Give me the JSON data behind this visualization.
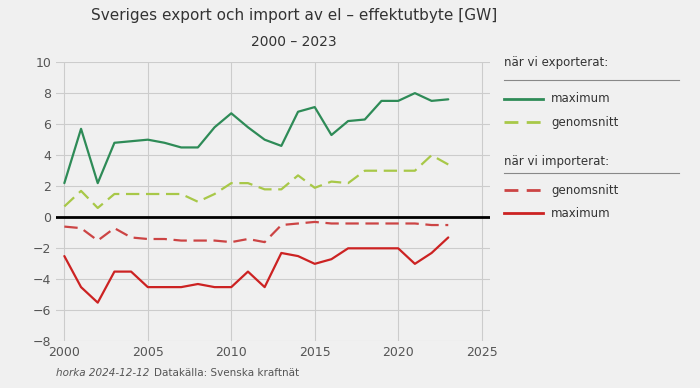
{
  "title_line1": "Sveriges export och import av el – effektutbyte [GW]",
  "title_line2": "2000 – 2023",
  "years": [
    2000,
    2001,
    2002,
    2003,
    2004,
    2005,
    2006,
    2007,
    2008,
    2009,
    2010,
    2011,
    2012,
    2013,
    2014,
    2015,
    2016,
    2017,
    2018,
    2019,
    2020,
    2021,
    2022,
    2023
  ],
  "export_max": [
    2.2,
    5.7,
    2.2,
    4.8,
    4.9,
    5.0,
    4.8,
    4.5,
    4.5,
    5.8,
    6.7,
    5.8,
    5.0,
    4.6,
    6.8,
    7.1,
    5.3,
    6.2,
    6.3,
    7.5,
    7.5,
    8.0,
    7.5,
    7.6
  ],
  "export_avg": [
    0.7,
    1.7,
    0.6,
    1.5,
    1.5,
    1.5,
    1.5,
    1.5,
    1.0,
    1.5,
    2.2,
    2.2,
    1.8,
    1.8,
    2.7,
    1.9,
    2.3,
    2.2,
    3.0,
    3.0,
    3.0,
    3.0,
    4.0,
    3.4
  ],
  "import_avg": [
    -0.6,
    -0.7,
    -1.5,
    -0.7,
    -1.3,
    -1.4,
    -1.4,
    -1.5,
    -1.5,
    -1.5,
    -1.6,
    -1.4,
    -1.6,
    -0.5,
    -0.4,
    -0.3,
    -0.4,
    -0.4,
    -0.4,
    -0.4,
    -0.4,
    -0.4,
    -0.5,
    -0.5
  ],
  "import_max": [
    -2.5,
    -4.5,
    -5.5,
    -3.5,
    -3.5,
    -4.5,
    -4.5,
    -4.5,
    -4.3,
    -4.5,
    -4.5,
    -3.5,
    -4.5,
    -2.3,
    -2.5,
    -3.0,
    -2.7,
    -2.0,
    -2.0,
    -2.0,
    -2.0,
    -3.0,
    -2.3,
    -1.3
  ],
  "export_max_color": "#2e8b57",
  "export_avg_color": "#a8c848",
  "import_avg_color": "#cc4444",
  "import_max_color": "#cc2222",
  "zero_line_color": "#000000",
  "grid_color": "#cccccc",
  "plot_bg_color": "#f0f0f0",
  "fig_bg_color": "#f0f0f0",
  "ylim": [
    -8,
    10
  ],
  "yticks": [
    -8,
    -6,
    -4,
    -2,
    0,
    2,
    4,
    6,
    8,
    10
  ],
  "xlim": [
    1999.5,
    2025.5
  ],
  "xticks": [
    2000,
    2005,
    2010,
    2015,
    2020,
    2025
  ],
  "footer_left": "horka 2024-12-12",
  "footer_right": "Datakälla: Svenska kraftnät",
  "legend_export_title": "när vi exporterat:",
  "legend_import_title": "när vi importerat:",
  "legend_export_max": "maximum",
  "legend_export_avg": "genomsnitt",
  "legend_import_avg": "genomsnitt",
  "legend_import_max": "maximum"
}
